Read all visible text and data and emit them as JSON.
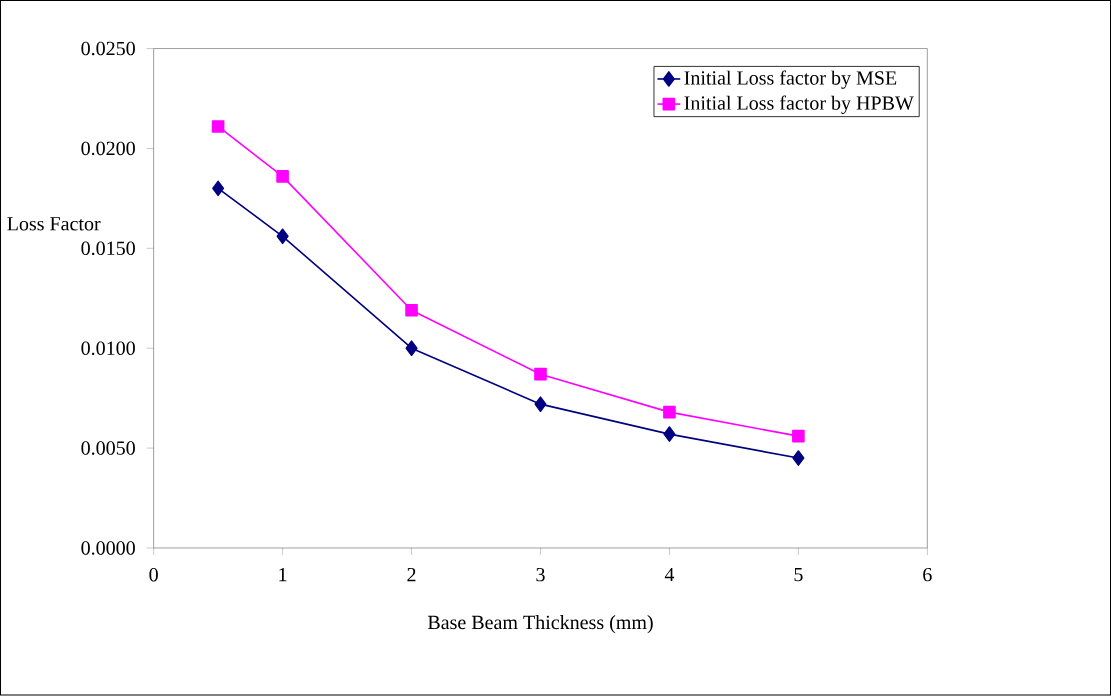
{
  "chart_data": {
    "type": "line",
    "xlabel": "Base Beam Thickness (mm)",
    "ylabel": "Loss Factor",
    "x": [
      0.5,
      1,
      2,
      3,
      4,
      5
    ],
    "series": [
      {
        "name": "Initial Loss factor by MSE",
        "color": "#000080",
        "marker": "diamond",
        "values": [
          0.018,
          0.0156,
          0.01,
          0.0072,
          0.0057,
          0.0045
        ]
      },
      {
        "name": "Initial Loss factor by HPBW",
        "color": "#ff00ff",
        "marker": "square",
        "values": [
          0.0211,
          0.0186,
          0.0119,
          0.0087,
          0.0068,
          0.0056
        ]
      }
    ],
    "xlim": [
      0,
      6
    ],
    "xticks": [
      0,
      1,
      2,
      3,
      4,
      5,
      6
    ],
    "ylim": [
      0,
      0.025
    ],
    "yticks": [
      {
        "value": 0,
        "label": "0.0000"
      },
      {
        "value": 0.005,
        "label": "0.0050"
      },
      {
        "value": 0.01,
        "label": "0.0100"
      },
      {
        "value": 0.015,
        "label": "0.0150"
      },
      {
        "value": 0.02,
        "label": "0.0200"
      },
      {
        "value": 0.025,
        "label": "0.0250"
      }
    ],
    "line_style": "solid",
    "grid": false,
    "legend": "top right"
  }
}
